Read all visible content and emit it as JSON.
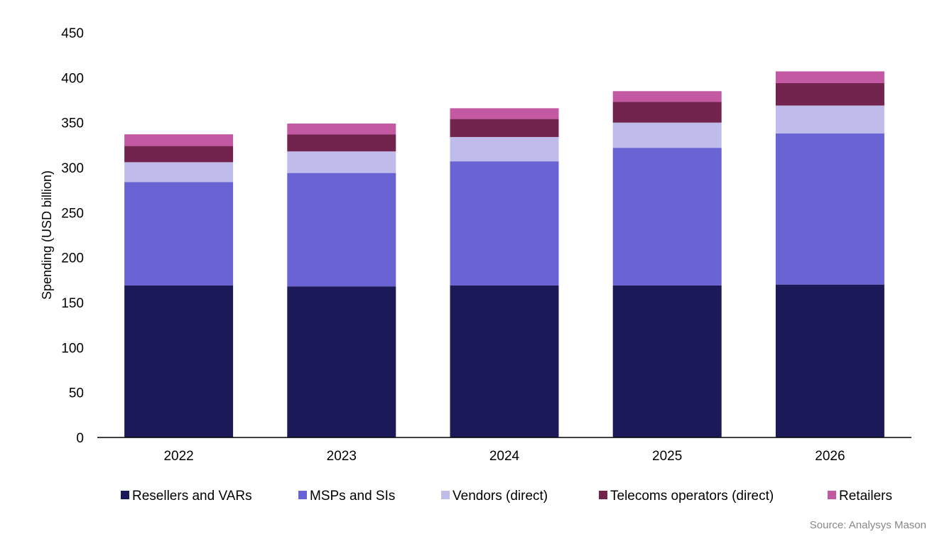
{
  "chart_data": {
    "type": "bar",
    "stacked": true,
    "categories": [
      "2022",
      "2023",
      "2024",
      "2025",
      "2026"
    ],
    "series": [
      {
        "name": "Resellers and VARs",
        "color": "#1b1957",
        "values": [
          169,
          168,
          169,
          169,
          170
        ]
      },
      {
        "name": "MSPs and SIs",
        "color": "#6963d4",
        "values": [
          115,
          126,
          138,
          153,
          168
        ]
      },
      {
        "name": "Vendors (direct)",
        "color": "#bfbcec",
        "values": [
          22,
          24,
          27,
          28,
          31
        ]
      },
      {
        "name": "Telecoms operators (direct)",
        "color": "#72244e",
        "values": [
          18,
          19,
          20,
          23,
          25
        ]
      },
      {
        "name": "Retailers",
        "color": "#c358a3",
        "values": [
          13,
          12,
          12,
          12,
          13
        ]
      }
    ],
    "ylabel": "Spending (USD billion)",
    "xlabel": "",
    "ylim": [
      0,
      450
    ],
    "yticks": [
      "0",
      "50",
      "100",
      "150",
      "200",
      "250",
      "300",
      "350",
      "400",
      "450"
    ],
    "grid": false,
    "legend_position": "bottom"
  },
  "source": "Source: Analysys Mason"
}
